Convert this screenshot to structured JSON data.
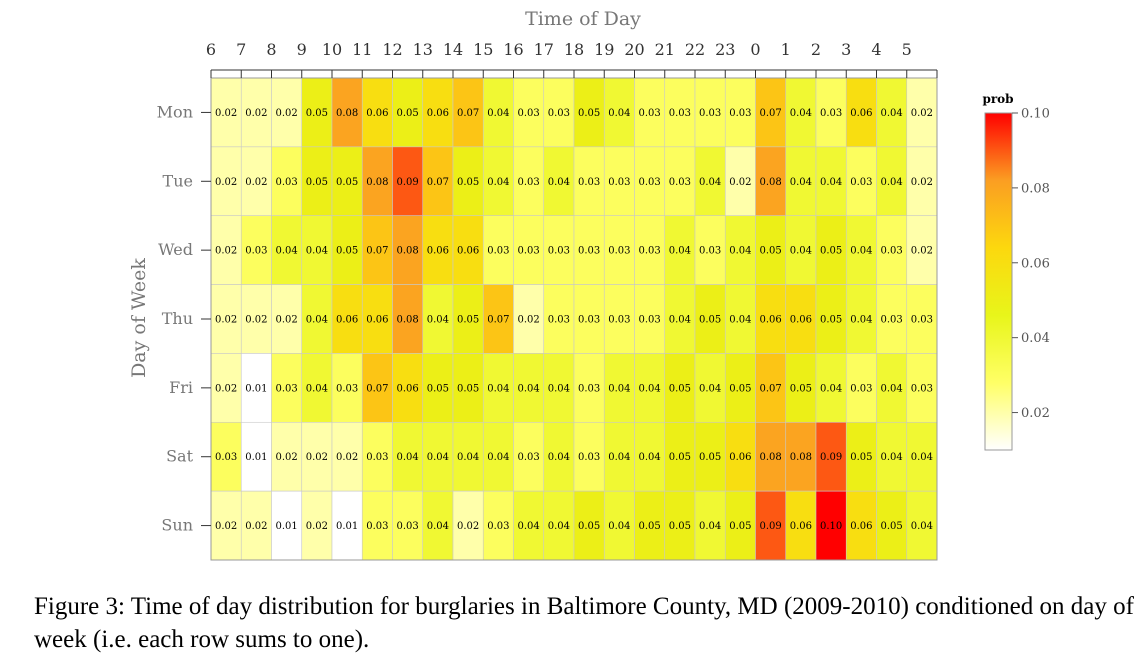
{
  "chart_data": {
    "type": "heatmap",
    "title": "",
    "xlabel": "Time of Day",
    "ylabel": "Day of Week",
    "x_categories": [
      "6",
      "7",
      "8",
      "9",
      "10",
      "11",
      "12",
      "13",
      "14",
      "15",
      "16",
      "17",
      "18",
      "19",
      "20",
      "21",
      "22",
      "23",
      "0",
      "1",
      "2",
      "3",
      "4",
      "5"
    ],
    "y_categories": [
      "Mon",
      "Tue",
      "Wed",
      "Thu",
      "Fri",
      "Sat",
      "Sun"
    ],
    "values": [
      [
        0.02,
        0.02,
        0.02,
        0.05,
        0.08,
        0.06,
        0.05,
        0.06,
        0.07,
        0.04,
        0.03,
        0.03,
        0.05,
        0.04,
        0.03,
        0.03,
        0.03,
        0.03,
        0.07,
        0.04,
        0.03,
        0.06,
        0.04,
        0.02
      ],
      [
        0.02,
        0.02,
        0.03,
        0.05,
        0.05,
        0.08,
        0.09,
        0.07,
        0.05,
        0.04,
        0.03,
        0.04,
        0.03,
        0.03,
        0.03,
        0.03,
        0.04,
        0.02,
        0.08,
        0.04,
        0.04,
        0.03,
        0.04,
        0.02
      ],
      [
        0.02,
        0.03,
        0.04,
        0.04,
        0.05,
        0.07,
        0.08,
        0.06,
        0.06,
        0.03,
        0.03,
        0.03,
        0.03,
        0.03,
        0.03,
        0.04,
        0.03,
        0.04,
        0.05,
        0.04,
        0.05,
        0.04,
        0.03,
        0.02
      ],
      [
        0.02,
        0.02,
        0.02,
        0.04,
        0.06,
        0.06,
        0.08,
        0.04,
        0.05,
        0.07,
        0.02,
        0.03,
        0.03,
        0.03,
        0.03,
        0.04,
        0.05,
        0.04,
        0.06,
        0.06,
        0.05,
        0.04,
        0.03,
        0.03
      ],
      [
        0.02,
        0.01,
        0.03,
        0.04,
        0.03,
        0.07,
        0.06,
        0.05,
        0.05,
        0.04,
        0.04,
        0.04,
        0.03,
        0.04,
        0.04,
        0.05,
        0.04,
        0.05,
        0.07,
        0.05,
        0.04,
        0.03,
        0.04,
        0.03
      ],
      [
        0.03,
        0.01,
        0.02,
        0.02,
        0.02,
        0.03,
        0.04,
        0.04,
        0.04,
        0.04,
        0.03,
        0.04,
        0.03,
        0.04,
        0.04,
        0.05,
        0.05,
        0.06,
        0.08,
        0.08,
        0.09,
        0.05,
        0.04,
        0.04
      ],
      [
        0.02,
        0.02,
        0.01,
        0.02,
        0.01,
        0.03,
        0.03,
        0.04,
        0.02,
        0.03,
        0.04,
        0.04,
        0.05,
        0.04,
        0.05,
        0.05,
        0.04,
        0.05,
        0.09,
        0.06,
        0.1,
        0.06,
        0.05,
        0.04
      ]
    ],
    "colorbar": {
      "title": "prob",
      "ticks": [
        "0.10",
        "0.08",
        "0.06",
        "0.04",
        "0.02"
      ],
      "range": [
        0.01,
        0.1
      ],
      "colors": [
        "#ffffff",
        "#ffff66",
        "#e8f51a",
        "#fcd80e",
        "#fb9e22",
        "#ff0000"
      ]
    },
    "grid": true
  },
  "caption": "Figure 3: Time of day distribution for burglaries in Baltimore County, MD (2009-2010) conditioned on day of week (i.e. each row sums to one)."
}
